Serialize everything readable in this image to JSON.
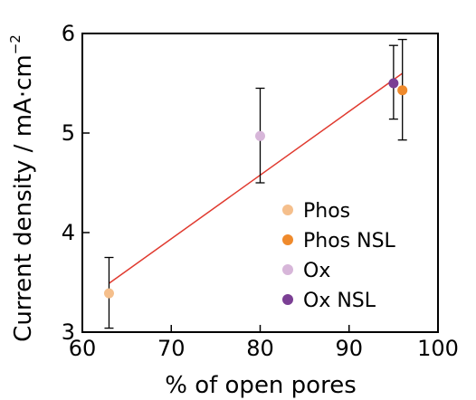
{
  "chart_data": {
    "type": "scatter",
    "xlabel": "% of open pores",
    "ylabel_main": "Current density  /  mA·cm",
    "ylabel_sup": "−2",
    "xlim": [
      60,
      100
    ],
    "ylim": [
      3,
      6
    ],
    "xticks": [
      "60",
      "70",
      "80",
      "90",
      "100"
    ],
    "yticks": [
      "3",
      "4",
      "5",
      "6"
    ],
    "legend_position": "lower-right",
    "grid": false,
    "series": [
      {
        "name": "Phos",
        "color": "#f5bf8c",
        "x": 63,
        "y": 3.39,
        "err_low": 3.04,
        "err_high": 3.75
      },
      {
        "name": "Phos NSL",
        "color": "#ef8a2c",
        "x": 96,
        "y": 5.43,
        "err_low": 4.93,
        "err_high": 5.94
      },
      {
        "name": "Ox",
        "color": "#d7b6d9",
        "x": 80,
        "y": 4.97,
        "err_low": 4.5,
        "err_high": 5.45
      },
      {
        "name": "Ox NSL",
        "color": "#7b3f94",
        "x": 95,
        "y": 5.5,
        "err_low": 5.14,
        "err_high": 5.88
      }
    ],
    "fit_line": {
      "color": "#e03a2f",
      "x": [
        63,
        96
      ],
      "y": [
        3.49,
        5.6
      ]
    }
  }
}
